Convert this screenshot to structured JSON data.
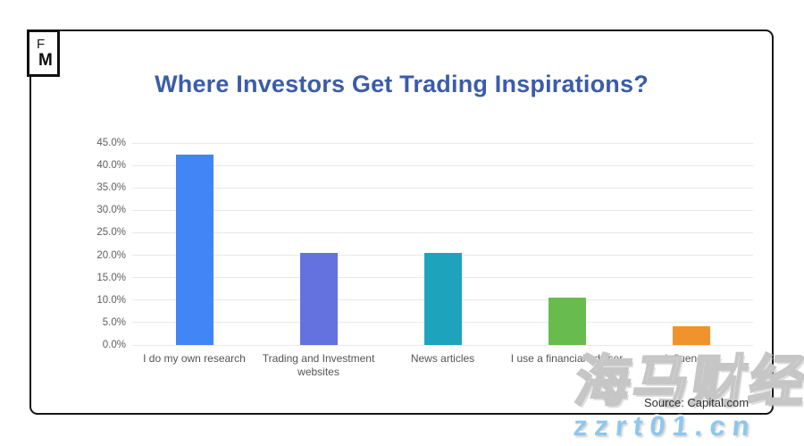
{
  "page": {
    "background": "#ffffff"
  },
  "logo": {
    "letter_f": "F",
    "letter_m": "M"
  },
  "title": {
    "text": "Where Investors Get Trading Inspirations?",
    "color": "#3b5ca9"
  },
  "chart_data": {
    "type": "bar",
    "title": "Where Investors Get Trading Inspirations?",
    "categories": [
      "I do my own research",
      "Trading and Investment websites",
      "News articles",
      "I use a financial adviser",
      "Influencers"
    ],
    "values": [
      42.5,
      20.5,
      20.5,
      10.5,
      4.1
    ],
    "bar_colors": [
      "#4285f4",
      "#6372df",
      "#1ea3bc",
      "#68bc4d",
      "#f0932c"
    ],
    "xlabel": "",
    "ylabel": "",
    "ylim": [
      0,
      45
    ],
    "y_ticks": [
      "45.0%",
      "40.0%",
      "35.0%",
      "30.0%",
      "25.0%",
      "20.0%",
      "15.0%",
      "10.0%",
      "5.0%",
      "0.0%"
    ],
    "grid": true,
    "legend": false,
    "gridline_color": "#e9e9e9"
  },
  "source": {
    "text": "Source: Capital.com"
  },
  "watermarks": {
    "cjk": "海马财经",
    "url": "zzrt01.cn"
  }
}
